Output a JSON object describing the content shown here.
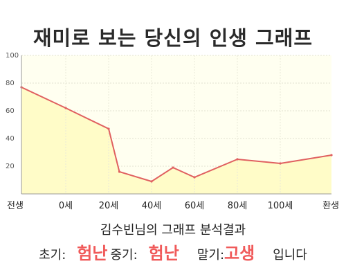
{
  "title": "재미로 보는 당신의 인생 그래프",
  "subtitle": "김수빈님의 그래프 분석결과",
  "result": {
    "early_label": "초기:",
    "early_value": "험난",
    "mid_label": "중기:",
    "mid_value": "험난",
    "late_label": "말기:",
    "late_value": "고생",
    "suffix": "입니다"
  },
  "colors": {
    "line": "#e06060",
    "fill": "#fffcc8",
    "plot_bg": "#fffff0",
    "highlight": "#f05a5a"
  },
  "chart_data": {
    "type": "area",
    "x_tick_labels": [
      "전생",
      "0세",
      "20세",
      "40세",
      "60세",
      "80세",
      "100세",
      "환생"
    ],
    "y_ticks": [
      20,
      40,
      60,
      80,
      100
    ],
    "ylim": [
      0,
      100
    ],
    "grid": true,
    "series": [
      {
        "x": [
          "전생",
          "0세",
          "20세",
          "25세",
          "40세",
          "50세",
          "60세",
          "80세",
          "100세",
          "환생"
        ],
        "values": [
          77,
          62,
          47,
          16,
          9,
          19,
          12,
          25,
          22,
          28
        ]
      }
    ]
  }
}
